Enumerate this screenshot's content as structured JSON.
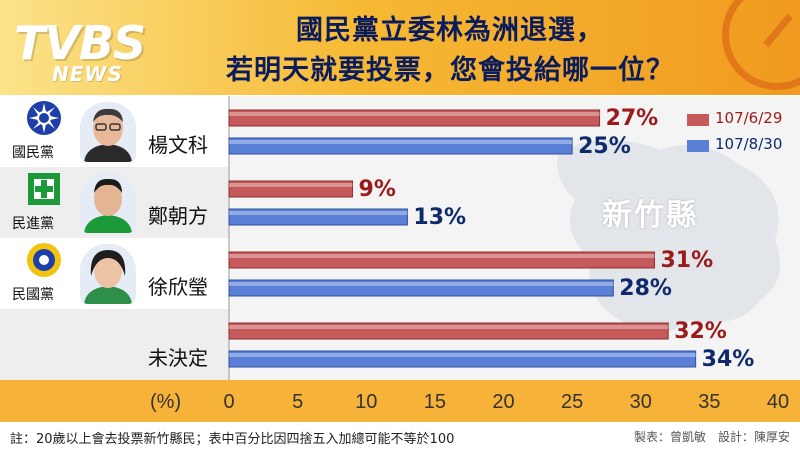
{
  "brand": {
    "logo": "TVBS",
    "logo_sub": "NEWS"
  },
  "title": {
    "line1": "國民黨立委林為洲退選，",
    "line2": "若明天就要投票，您會投給哪一位？"
  },
  "county_label": "新竹縣",
  "colors": {
    "red": "#c65a5a",
    "blue": "#5a7fd6",
    "kmt_blue": "#1f3fa8",
    "dpp_green": "#1c9a3a",
    "header_orange": "#f6b934"
  },
  "candidates": [
    {
      "party": "國民黨",
      "name": "楊文科",
      "emblem": "kmt-emblem-icon"
    },
    {
      "party": "民進黨",
      "name": "鄭朝方",
      "emblem": "dpp-emblem-icon"
    },
    {
      "party": "民國黨",
      "name": "徐欣瑩",
      "emblem": "mkt-emblem-icon"
    },
    {
      "party": "",
      "name": "未決定",
      "emblem": ""
    }
  ],
  "axis": {
    "unit_label": "(%)"
  },
  "footnote": "註：20歲以上會去投票新竹縣民；表中百分比因四捨五入加總可能不等於100",
  "credit": "製表：曾凱敏　設計：陳厚安",
  "chart_data": {
    "type": "bar",
    "orientation": "horizontal",
    "categories": [
      "楊文科",
      "鄭朝方",
      "徐欣瑩",
      "未決定"
    ],
    "series": [
      {
        "name": "107/6/29",
        "values": [
          27,
          9,
          31,
          32
        ],
        "labels": [
          "27%",
          "9%",
          "31%",
          "32%"
        ],
        "color": "#c65a5a"
      },
      {
        "name": "107/8/30",
        "values": [
          25,
          13,
          28,
          34
        ],
        "labels": [
          "25%",
          "13%",
          "28%",
          "34%"
        ],
        "color": "#5a7fd6"
      }
    ],
    "xlim": [
      0,
      40
    ],
    "xticks": [
      0,
      5,
      10,
      15,
      20,
      25,
      30,
      35,
      40
    ],
    "xlabel": "(%)",
    "legend": "top-right",
    "grid": false
  }
}
